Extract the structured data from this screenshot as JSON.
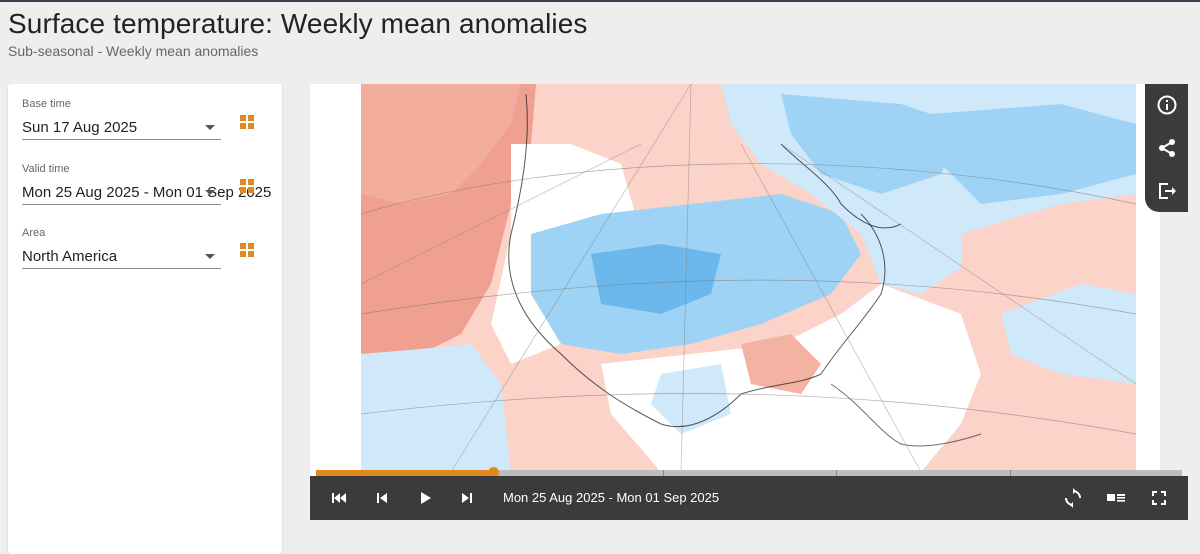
{
  "header": {
    "title": "Surface temperature: Weekly mean anomalies",
    "subtitle": "Sub-seasonal - Weekly mean anomalies"
  },
  "sidebar": {
    "fields": [
      {
        "label": "Base time",
        "value": "Sun 17 Aug 2025"
      },
      {
        "label": "Valid time",
        "value": "Mon 25 Aug 2025 - Mon 01 Sep 2025"
      },
      {
        "label": "Area",
        "value": "North America"
      }
    ]
  },
  "player": {
    "date_range": "Mon 25 Aug 2025 - Mon 01 Sep 2025",
    "progress": 0.204,
    "icons": [
      "skip-to-start-icon",
      "step-back-icon",
      "play-icon",
      "step-forward-icon",
      "loop-icon",
      "legend-toggle-icon",
      "fullscreen-icon"
    ]
  },
  "toolbar": {
    "icons": [
      "info-icon",
      "share-icon",
      "export-icon"
    ]
  },
  "colors": {
    "accent": "#e08a1e",
    "warm_strong": "#f0a090",
    "warm_light": "#fbd3c8",
    "cool_light": "#cfe9fb",
    "cool_mid": "#9fd3f5",
    "cool_strong": "#6cb8ec",
    "control_bar": "#3b3b3b"
  }
}
